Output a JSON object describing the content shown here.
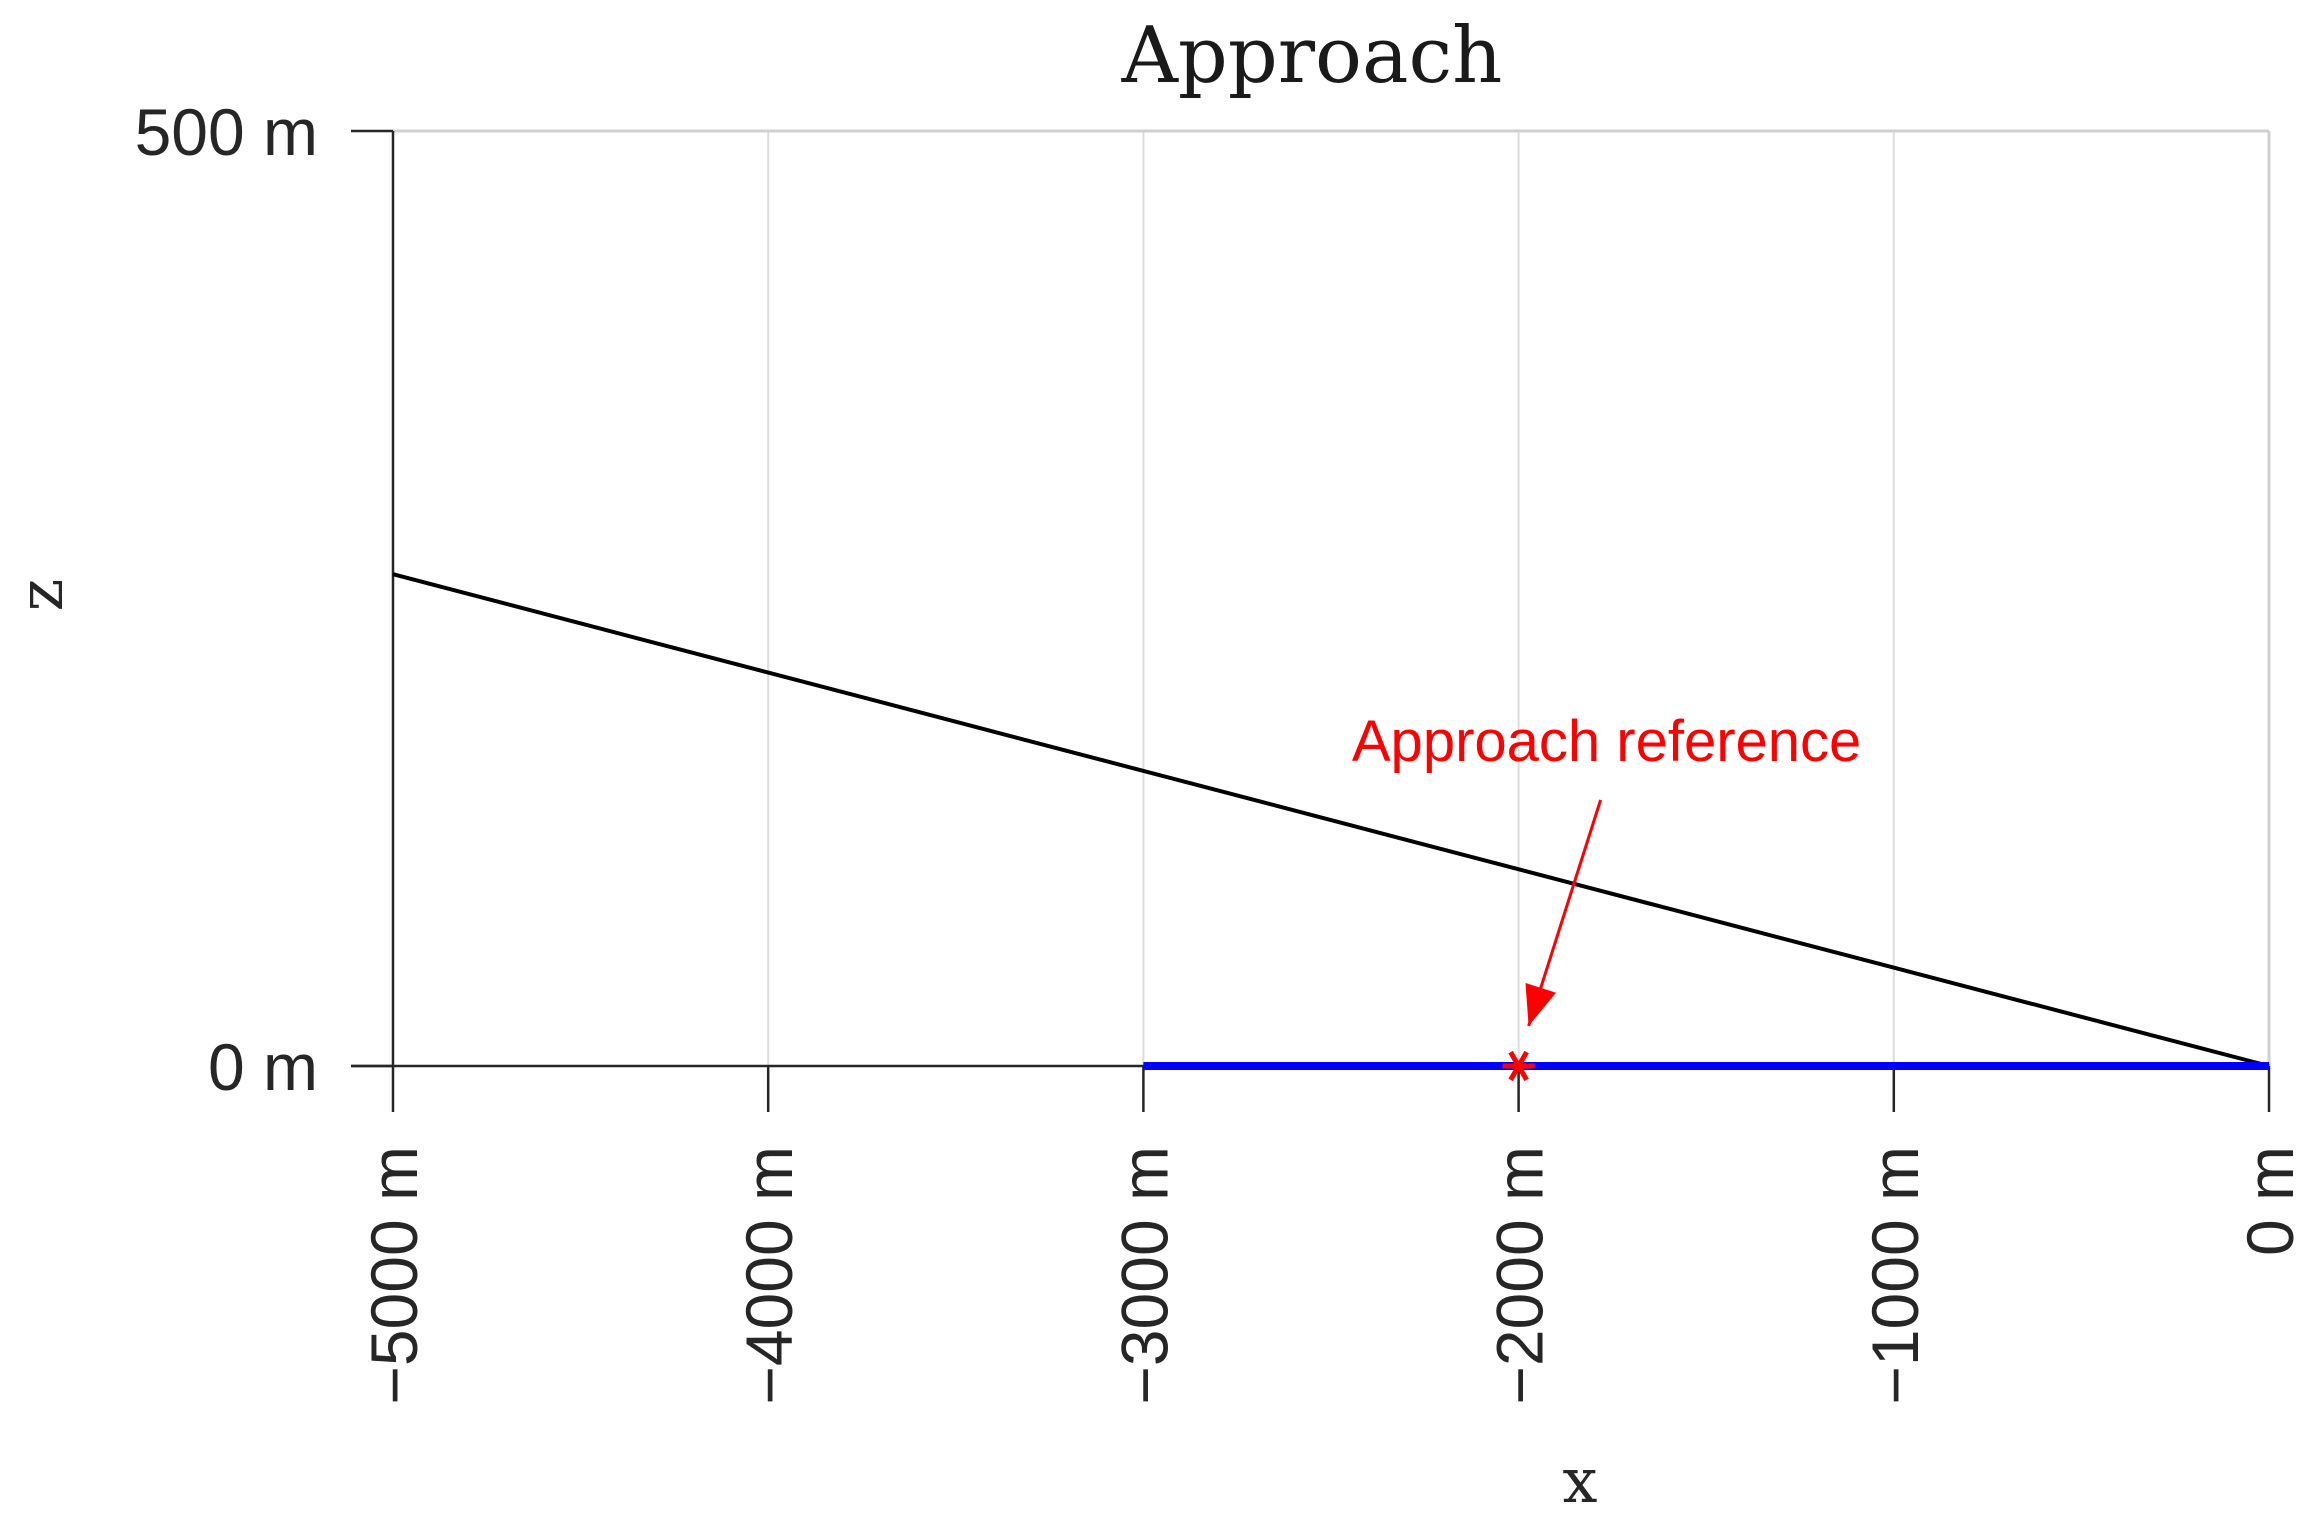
{
  "chart_data": {
    "type": "line",
    "title": "Approach",
    "xlabel": "x",
    "ylabel": "z",
    "xlim": [
      -5000,
      0
    ],
    "ylim": [
      0,
      500
    ],
    "x_ticks": [
      -5000,
      -4000,
      -3000,
      -2000,
      -1000,
      0
    ],
    "x_tick_labels": [
      "−5000 m",
      "−4000 m",
      "−3000 m",
      "−2000 m",
      "−1000 m",
      "0 m"
    ],
    "y_ticks": [
      0,
      500
    ],
    "y_tick_labels": [
      "0 m",
      "500 m"
    ],
    "grid": {
      "x": true,
      "y": false
    },
    "series": [
      {
        "color": "#000000",
        "x": [
          -5000,
          0
        ],
        "y": [
          263,
          0
        ]
      },
      {
        "color": "#0000ff",
        "x": [
          -3000,
          0
        ],
        "y": [
          0,
          0
        ]
      }
    ],
    "annotation": {
      "text": "Approach reference",
      "point": {
        "x": -2000,
        "y": 0
      },
      "color": "#ff0000"
    }
  }
}
